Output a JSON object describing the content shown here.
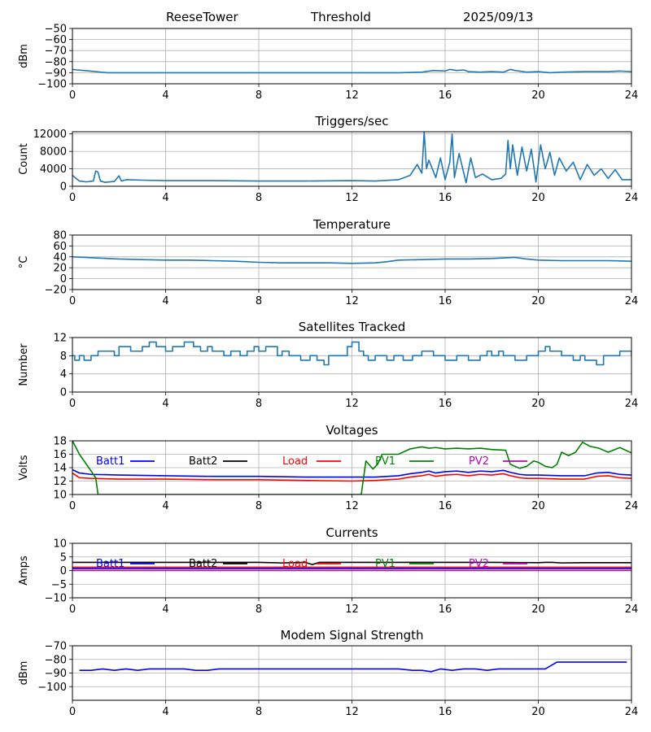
{
  "header": {
    "station": "ReeseTower",
    "mode": "Threshold",
    "date": "2025/09/13"
  },
  "colors": {
    "default_line": "#1f77b4",
    "grid": "#b0b0b0",
    "blue": "#0000ff",
    "black": "#000000",
    "red": "#ff0000",
    "green": "#008000",
    "magenta": "#bf00bf"
  },
  "chart_data": [
    {
      "type": "line",
      "title": "",
      "xlabel": "",
      "ylabel": "dBm",
      "xlim": [
        0,
        24
      ],
      "ylim": [
        -100,
        -50
      ],
      "xticks": [
        "0",
        "4",
        "8",
        "12",
        "16",
        "20",
        "24"
      ],
      "yticks": [
        "−50",
        "−60",
        "−70",
        "−80",
        "−90",
        "−100"
      ],
      "ytick_values": [
        -50,
        -60,
        -70,
        -80,
        -90,
        -100
      ],
      "grid": true,
      "series": [
        {
          "color_key": "default_line",
          "x": [
            0,
            0.2,
            0.5,
            1,
            1.5,
            2,
            3,
            4,
            6,
            8,
            10,
            12,
            14,
            15,
            15.5,
            16,
            16.2,
            16.5,
            16.8,
            17,
            17.5,
            18,
            18.5,
            18.8,
            19,
            19.5,
            20,
            20.5,
            21,
            22,
            23,
            23.5,
            24
          ],
          "y": [
            -87,
            -87.5,
            -88,
            -89,
            -90,
            -90,
            -90,
            -90,
            -90,
            -90,
            -90,
            -90,
            -90,
            -89.5,
            -88,
            -88.5,
            -87,
            -88,
            -87.5,
            -89,
            -89.5,
            -89,
            -89.5,
            -87,
            -88,
            -89.5,
            -89,
            -90,
            -89.5,
            -89,
            -89,
            -88.5,
            -89
          ]
        }
      ]
    },
    {
      "type": "line",
      "title": "Triggers/sec",
      "xlabel": "",
      "ylabel": "Count",
      "xlim": [
        0,
        24
      ],
      "ylim": [
        0,
        12500
      ],
      "xticks": [
        "0",
        "4",
        "8",
        "12",
        "16",
        "20",
        "24"
      ],
      "yticks": [
        "0",
        "4000",
        "8000",
        "12000"
      ],
      "ytick_values": [
        0,
        4000,
        8000,
        12000
      ],
      "grid": true,
      "series": [
        {
          "color_key": "default_line",
          "x": [
            0,
            0.3,
            0.6,
            0.9,
            1.0,
            1.1,
            1.2,
            1.4,
            1.8,
            2.0,
            2.1,
            2.3,
            3,
            4,
            6,
            8,
            10,
            12,
            13,
            14,
            14.5,
            14.8,
            15.0,
            15.1,
            15.2,
            15.3,
            15.6,
            15.8,
            16.0,
            16.2,
            16.3,
            16.4,
            16.6,
            16.9,
            17.1,
            17.3,
            17.6,
            18.0,
            18.4,
            18.6,
            18.7,
            18.8,
            18.9,
            19.1,
            19.3,
            19.5,
            19.7,
            19.9,
            20.1,
            20.3,
            20.5,
            20.7,
            20.9,
            21.2,
            21.5,
            21.8,
            22.1,
            22.4,
            22.7,
            23.0,
            23.3,
            23.6,
            24
          ],
          "y": [
            2500,
            1200,
            1000,
            1200,
            3500,
            3200,
            1200,
            900,
            1100,
            2400,
            1200,
            1500,
            1400,
            1300,
            1300,
            1200,
            1200,
            1300,
            1200,
            1500,
            2500,
            5000,
            3000,
            12500,
            4000,
            6000,
            2000,
            6500,
            1500,
            5500,
            12000,
            2000,
            7500,
            800,
            6500,
            2000,
            2800,
            1500,
            1800,
            2800,
            10500,
            4000,
            9500,
            2500,
            9000,
            3500,
            8500,
            1000,
            9500,
            4000,
            7800,
            2500,
            6500,
            3500,
            5500,
            1500,
            5000,
            2500,
            4000,
            1800,
            3800,
            1500,
            1500
          ]
        }
      ]
    },
    {
      "type": "line",
      "title": "Temperature",
      "xlabel": "",
      "ylabel": "°C",
      "xlim": [
        0,
        24
      ],
      "ylim": [
        -20,
        80
      ],
      "xticks": [
        "0",
        "4",
        "8",
        "12",
        "16",
        "20",
        "24"
      ],
      "yticks": [
        "−20",
        "0",
        "20",
        "40",
        "60",
        "80"
      ],
      "ytick_values": [
        -20,
        0,
        20,
        40,
        60,
        80
      ],
      "grid": true,
      "series": [
        {
          "color_key": "default_line",
          "x": [
            0,
            0.5,
            1,
            1.5,
            2,
            3,
            4,
            5,
            6,
            7,
            8,
            9,
            10,
            11,
            12,
            13,
            13.5,
            14,
            15,
            16,
            17,
            18,
            18.5,
            19,
            19.5,
            20,
            21,
            22,
            23,
            24
          ],
          "y": [
            40,
            39,
            38,
            37,
            36,
            35,
            34,
            34,
            33,
            32,
            30,
            29,
            29,
            29,
            28,
            29,
            31,
            34,
            35,
            36,
            36,
            37,
            38,
            39,
            36,
            34,
            33,
            33,
            33,
            32
          ]
        }
      ]
    },
    {
      "type": "line",
      "title": "Satellites Tracked",
      "xlabel": "",
      "ylabel": "Number",
      "xlim": [
        0,
        24
      ],
      "ylim": [
        0,
        12
      ],
      "xticks": [
        "0",
        "4",
        "8",
        "12",
        "16",
        "20",
        "24"
      ],
      "yticks": [
        "0",
        "4",
        "8",
        "12"
      ],
      "ytick_values": [
        0,
        4,
        8,
        12
      ],
      "grid": true,
      "series": [
        {
          "color_key": "default_line",
          "step": true,
          "x": [
            0,
            0.1,
            0.3,
            0.5,
            0.8,
            1.0,
            1.1,
            1.5,
            1.8,
            2.0,
            2.5,
            3.0,
            3.3,
            3.6,
            4.0,
            4.3,
            4.8,
            5.2,
            5.5,
            5.8,
            6.0,
            6.5,
            6.8,
            7.2,
            7.5,
            7.8,
            8.0,
            8.3,
            8.8,
            9.0,
            9.3,
            9.8,
            10.2,
            10.5,
            10.8,
            11.0,
            11.3,
            11.8,
            12.0,
            12.3,
            12.5,
            12.7,
            13.0,
            13.5,
            13.8,
            14.2,
            14.6,
            15.0,
            15.5,
            16.0,
            16.5,
            17.0,
            17.5,
            17.8,
            18.0,
            18.3,
            18.5,
            19.0,
            19.5,
            20.0,
            20.3,
            20.5,
            21.0,
            21.5,
            21.8,
            22.0,
            22.5,
            22.8,
            23.0,
            23.5,
            24
          ],
          "y": [
            8,
            7,
            8,
            7,
            8,
            8,
            9,
            9,
            8,
            10,
            9,
            10,
            11,
            10,
            9,
            10,
            11,
            10,
            9,
            10,
            9,
            8,
            9,
            8,
            9,
            10,
            9,
            10,
            8,
            9,
            8,
            7,
            8,
            7,
            6,
            8,
            8,
            10,
            11,
            9,
            8,
            7,
            8,
            7,
            8,
            7,
            8,
            9,
            8,
            7,
            8,
            7,
            8,
            9,
            8,
            9,
            8,
            7,
            8,
            9,
            10,
            9,
            8,
            7,
            8,
            7,
            6,
            8,
            8,
            9,
            8
          ]
        }
      ]
    },
    {
      "type": "line",
      "title": "Voltages",
      "xlabel": "",
      "ylabel": "Volts",
      "xlim": [
        0,
        24
      ],
      "ylim": [
        10,
        18
      ],
      "xticks": [
        "0",
        "4",
        "8",
        "12",
        "16",
        "20",
        "24"
      ],
      "yticks": [
        "10",
        "12",
        "14",
        "16",
        "18"
      ],
      "ytick_values": [
        10,
        12,
        14,
        16,
        18
      ],
      "grid": true,
      "legend": [
        "Batt1",
        "Batt2",
        "Load",
        "PV1",
        "PV2"
      ],
      "legend_colors": [
        "blue",
        "black",
        "red",
        "green",
        "magenta"
      ],
      "series": [
        {
          "name": "Batt1",
          "color_key": "blue",
          "x": [
            0,
            0.3,
            0.8,
            2,
            4,
            6,
            8,
            10,
            12,
            13,
            14,
            14.5,
            15,
            15.3,
            15.6,
            16,
            16.5,
            17,
            17.5,
            18,
            18.5,
            18.8,
            19.2,
            19.5,
            20,
            21,
            22,
            22.5,
            23,
            23.5,
            24
          ],
          "y": [
            13.7,
            13.2,
            13.0,
            12.9,
            12.8,
            12.7,
            12.7,
            12.6,
            12.6,
            12.6,
            12.8,
            13.1,
            13.3,
            13.5,
            13.2,
            13.4,
            13.5,
            13.3,
            13.5,
            13.4,
            13.6,
            13.3,
            13.0,
            12.9,
            12.9,
            12.8,
            12.8,
            13.2,
            13.3,
            13.0,
            12.9
          ]
        },
        {
          "name": "Load",
          "color_key": "red",
          "x": [
            0,
            0.3,
            0.8,
            2,
            4,
            6,
            8,
            10,
            12,
            13,
            14,
            14.5,
            15,
            15.3,
            15.6,
            16,
            16.5,
            17,
            17.5,
            18,
            18.5,
            18.8,
            19.2,
            19.5,
            20,
            21,
            22,
            22.5,
            23,
            23.5,
            24
          ],
          "y": [
            13.2,
            12.5,
            12.4,
            12.3,
            12.3,
            12.2,
            12.2,
            12.1,
            12.0,
            12.1,
            12.3,
            12.6,
            12.8,
            13.0,
            12.7,
            12.9,
            13.0,
            12.8,
            13.0,
            12.9,
            13.1,
            12.8,
            12.5,
            12.4,
            12.4,
            12.3,
            12.3,
            12.7,
            12.8,
            12.5,
            12.4
          ]
        },
        {
          "name": "PV1",
          "color_key": "green",
          "x": [
            0,
            0.3,
            0.6,
            1.0,
            1.1,
            12.4,
            12.6,
            12.9,
            13.1,
            13.3,
            13.5,
            14.0,
            14.5,
            15.0,
            15.3,
            15.6,
            16.0,
            16.5,
            17.0,
            17.5,
            18.0,
            18.6,
            18.8,
            19.2,
            19.5,
            19.8,
            20.0,
            20.3,
            20.6,
            20.8,
            21.0,
            21.3,
            21.6,
            21.9,
            22.2,
            22.6,
            23.0,
            23.5,
            24
          ],
          "y": [
            18.0,
            16.0,
            14.5,
            12.5,
            10.0,
            10.0,
            15.0,
            13.8,
            14.5,
            16.0,
            16.0,
            16.0,
            16.8,
            17.1,
            16.9,
            17.0,
            16.8,
            16.9,
            16.8,
            16.9,
            16.7,
            16.6,
            14.5,
            13.9,
            14.2,
            15.0,
            14.8,
            14.2,
            14.0,
            14.5,
            16.3,
            15.8,
            16.3,
            17.8,
            17.2,
            16.9,
            16.3,
            17.0,
            16.2
          ]
        }
      ]
    },
    {
      "type": "line",
      "title": "Currents",
      "xlabel": "",
      "ylabel": "Amps",
      "xlim": [
        0,
        24
      ],
      "ylim": [
        -10,
        10
      ],
      "xticks": [
        "0",
        "4",
        "8",
        "12",
        "16",
        "20",
        "24"
      ],
      "yticks": [
        "−10",
        "−5",
        "0",
        "5",
        "10"
      ],
      "ytick_values": [
        -10,
        -5,
        0,
        5,
        10
      ],
      "grid": true,
      "legend": [
        "Batt1",
        "Batt2",
        "Load",
        "PV1",
        "PV2"
      ],
      "legend_colors": [
        "blue",
        "black",
        "red",
        "green",
        "magenta"
      ],
      "series": [
        {
          "name": "Batt2",
          "color_key": "black",
          "x": [
            0,
            2,
            4,
            6,
            8,
            9,
            10,
            10.3,
            10.6,
            12,
            14,
            16,
            18,
            20,
            20.3,
            20.6,
            21,
            22,
            24
          ],
          "y": [
            3,
            3,
            3,
            3,
            3,
            2.8,
            3,
            2.2,
            3,
            3,
            3,
            3,
            3,
            2.9,
            3,
            3,
            2.8,
            2.9,
            2.9
          ]
        },
        {
          "name": "Load",
          "color_key": "red",
          "x": [
            0,
            24
          ],
          "y": [
            1.2,
            1.2
          ]
        },
        {
          "name": "Batt1",
          "color_key": "blue",
          "x": [
            0,
            24
          ],
          "y": [
            0.7,
            0.7
          ]
        },
        {
          "name": "PV2",
          "color_key": "magenta",
          "x": [
            0,
            24
          ],
          "y": [
            0,
            0
          ]
        }
      ]
    },
    {
      "type": "line",
      "title": "Modem Signal Strength",
      "xlabel": "",
      "ylabel": "dBm",
      "xlim": [
        0,
        24
      ],
      "ylim": [
        -110,
        -70
      ],
      "xticks": [
        "0",
        "4",
        "8",
        "12",
        "16",
        "20",
        "24"
      ],
      "yticks": [
        "−100",
        "−90",
        "−80",
        "−70"
      ],
      "ytick_values": [
        -100,
        -90,
        -80,
        -70
      ],
      "grid": true,
      "series": [
        {
          "color_key": "blue",
          "x": [
            0.3,
            0.8,
            1.3,
            1.8,
            2.3,
            2.8,
            3.3,
            3.8,
            4.3,
            4.8,
            5.3,
            5.8,
            6.3,
            7,
            8,
            9,
            10,
            11,
            12,
            13,
            14,
            14.6,
            15.0,
            15.4,
            15.8,
            16.3,
            16.8,
            17.3,
            17.8,
            18.3,
            18.8,
            19.3,
            19.8,
            20.3,
            20.8,
            21.3,
            22,
            23,
            23.8
          ],
          "y": [
            -88,
            -88,
            -87,
            -88,
            -87,
            -88,
            -87,
            -87,
            -87,
            -87,
            -88,
            -88,
            -87,
            -87,
            -87,
            -87,
            -87,
            -87,
            -87,
            -87,
            -87,
            -88,
            -88,
            -89,
            -87,
            -88,
            -87,
            -87,
            -88,
            -87,
            -87,
            -87,
            -87,
            -87,
            -82,
            -82,
            -82,
            -82,
            -82
          ]
        }
      ]
    }
  ]
}
